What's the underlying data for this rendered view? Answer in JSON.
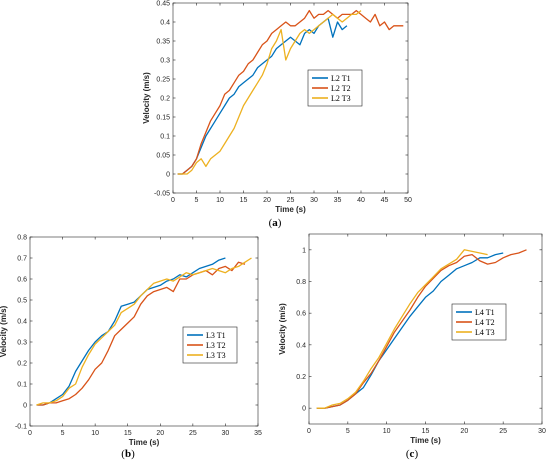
{
  "chart_data": [
    {
      "type": "line",
      "caption": {
        "open": "(",
        "letter": "a",
        "close": ")"
      },
      "xlabel": "Time (s)",
      "ylabel": "Velocity (m/s)",
      "xlim": [
        0,
        50
      ],
      "ylim": [
        -0.05,
        0.45
      ],
      "xticks": [
        "0",
        "5",
        "10",
        "15",
        "20",
        "25",
        "30",
        "35",
        "40",
        "45",
        "50"
      ],
      "yticks": [
        "-0.05",
        "0",
        "0.05",
        "0.1",
        "0.15",
        "0.2",
        "0.25",
        "0.3",
        "0.35",
        "0.4",
        "0.45"
      ],
      "legend": "center-right",
      "series": [
        {
          "name": "L2 T1",
          "color": "#0072BD",
          "x": [
            1,
            2,
            3,
            4,
            5,
            6,
            7,
            8,
            9,
            10,
            11,
            12,
            13,
            14,
            15,
            16,
            17,
            18,
            19,
            20,
            21,
            22,
            23,
            24,
            25,
            26,
            27,
            28,
            29,
            30,
            31,
            32,
            33,
            34,
            35,
            36,
            37
          ],
          "y": [
            0,
            0,
            0.01,
            0.02,
            0.04,
            0.07,
            0.1,
            0.12,
            0.14,
            0.16,
            0.18,
            0.2,
            0.21,
            0.23,
            0.24,
            0.25,
            0.26,
            0.28,
            0.29,
            0.3,
            0.31,
            0.33,
            0.34,
            0.35,
            0.36,
            0.35,
            0.34,
            0.37,
            0.38,
            0.37,
            0.39,
            0.4,
            0.41,
            0.36,
            0.4,
            0.38,
            0.39
          ]
        },
        {
          "name": "L2 T2",
          "color": "#D95319",
          "x": [
            1,
            2,
            3,
            4,
            5,
            6,
            7,
            8,
            9,
            10,
            11,
            12,
            13,
            14,
            15,
            16,
            17,
            18,
            19,
            20,
            21,
            22,
            23,
            24,
            25,
            26,
            27,
            28,
            29,
            30,
            31,
            32,
            33,
            34,
            35,
            36,
            37,
            38,
            39,
            40,
            41,
            42,
            43,
            44,
            45,
            46,
            47,
            48,
            49
          ],
          "y": [
            0,
            0,
            0.01,
            0.02,
            0.04,
            0.08,
            0.11,
            0.14,
            0.16,
            0.18,
            0.21,
            0.22,
            0.24,
            0.26,
            0.27,
            0.29,
            0.3,
            0.32,
            0.34,
            0.35,
            0.37,
            0.38,
            0.39,
            0.4,
            0.39,
            0.39,
            0.4,
            0.41,
            0.43,
            0.41,
            0.42,
            0.42,
            0.43,
            0.42,
            0.41,
            0.42,
            0.42,
            0.42,
            0.43,
            0.42,
            0.41,
            0.4,
            0.42,
            0.39,
            0.4,
            0.38,
            0.39,
            0.39,
            0.39
          ]
        },
        {
          "name": "L2 T3",
          "color": "#EDB120",
          "x": [
            1,
            2,
            3,
            4,
            5,
            6,
            7,
            8,
            9,
            10,
            11,
            12,
            13,
            14,
            15,
            16,
            17,
            18,
            19,
            20,
            21,
            22,
            23,
            24,
            25,
            26,
            27,
            28,
            29,
            30,
            31,
            32,
            33,
            34,
            35,
            36,
            37,
            38,
            39,
            40
          ],
          "y": [
            0,
            0,
            0,
            0.01,
            0.03,
            0.04,
            0.02,
            0.04,
            0.05,
            0.06,
            0.08,
            0.1,
            0.12,
            0.15,
            0.18,
            0.2,
            0.22,
            0.24,
            0.26,
            0.29,
            0.33,
            0.35,
            0.38,
            0.3,
            0.33,
            0.35,
            0.37,
            0.38,
            0.37,
            0.38,
            0.39,
            0.4,
            0.41,
            0.42,
            0.41,
            0.4,
            0.41,
            0.42,
            0.42,
            0.43
          ]
        }
      ]
    },
    {
      "type": "line",
      "caption": {
        "open": "(",
        "letter": "b",
        "close": ")"
      },
      "xlabel": "Time (s)",
      "ylabel": "Velocity (m/s)",
      "xlim": [
        0,
        35
      ],
      "ylim": [
        -0.1,
        0.8
      ],
      "xticks": [
        "0",
        "5",
        "10",
        "15",
        "20",
        "25",
        "30",
        "35"
      ],
      "yticks": [
        "-0.1",
        "0",
        "0.1",
        "0.2",
        "0.3",
        "0.4",
        "0.5",
        "0.6",
        "0.7",
        "0.8"
      ],
      "legend": "bottom-right",
      "series": [
        {
          "name": "L3 T1",
          "color": "#0072BD",
          "x": [
            1,
            2,
            3,
            4,
            5,
            6,
            7,
            8,
            9,
            10,
            11,
            12,
            13,
            14,
            15,
            16,
            17,
            18,
            19,
            20,
            21,
            22,
            23,
            24,
            25,
            26,
            27,
            28,
            29,
            30
          ],
          "y": [
            0,
            0,
            0.01,
            0.03,
            0.05,
            0.09,
            0.16,
            0.21,
            0.26,
            0.3,
            0.33,
            0.35,
            0.4,
            0.47,
            0.48,
            0.49,
            0.52,
            0.55,
            0.56,
            0.57,
            0.59,
            0.6,
            0.62,
            0.61,
            0.63,
            0.65,
            0.66,
            0.67,
            0.69,
            0.7
          ]
        },
        {
          "name": "L3 T2",
          "color": "#D95319",
          "x": [
            1,
            2,
            3,
            4,
            5,
            6,
            7,
            8,
            9,
            10,
            11,
            12,
            13,
            14,
            15,
            16,
            17,
            18,
            19,
            20,
            21,
            22,
            23,
            24,
            25,
            26,
            27,
            28,
            29,
            30,
            31,
            32,
            33
          ],
          "y": [
            0,
            0,
            0.01,
            0.01,
            0.02,
            0.03,
            0.05,
            0.08,
            0.12,
            0.17,
            0.2,
            0.26,
            0.33,
            0.36,
            0.39,
            0.42,
            0.48,
            0.52,
            0.54,
            0.55,
            0.56,
            0.54,
            0.6,
            0.6,
            0.62,
            0.63,
            0.64,
            0.62,
            0.65,
            0.66,
            0.64,
            0.68,
            0.67
          ]
        },
        {
          "name": "L3 T3",
          "color": "#EDB120",
          "x": [
            1,
            2,
            3,
            4,
            5,
            6,
            7,
            8,
            9,
            10,
            11,
            12,
            13,
            14,
            15,
            16,
            17,
            18,
            19,
            20,
            21,
            22,
            23,
            24,
            25,
            26,
            27,
            28,
            29,
            30,
            31,
            32,
            33,
            34
          ],
          "y": [
            0,
            0.01,
            0.01,
            0.02,
            0.04,
            0.08,
            0.1,
            0.18,
            0.24,
            0.29,
            0.32,
            0.35,
            0.38,
            0.44,
            0.46,
            0.48,
            0.52,
            0.55,
            0.58,
            0.59,
            0.6,
            0.59,
            0.61,
            0.63,
            0.62,
            0.63,
            0.64,
            0.65,
            0.64,
            0.63,
            0.65,
            0.66,
            0.68,
            0.7
          ]
        }
      ]
    },
    {
      "type": "line",
      "caption": {
        "open": "(",
        "letter": "c",
        "close": ")"
      },
      "xlabel": "Time (s)",
      "ylabel": "Velocity (m/s)",
      "xlim": [
        0,
        30
      ],
      "ylim": [
        -0.1,
        1.1
      ],
      "xticks": [
        "0",
        "5",
        "10",
        "15",
        "20",
        "25",
        "30"
      ],
      "yticks": [
        "0",
        "0.2",
        "0.4",
        "0.6",
        "0.8",
        "1"
      ],
      "legend": "bottom-right",
      "series": [
        {
          "name": "L4 T1",
          "color": "#0072BD",
          "x": [
            1,
            2,
            3,
            4,
            5,
            6,
            7,
            8,
            9,
            10,
            11,
            12,
            13,
            14,
            15,
            16,
            17,
            18,
            19,
            20,
            21,
            22,
            23,
            24,
            25
          ],
          "y": [
            0,
            0,
            0.01,
            0.02,
            0.05,
            0.09,
            0.13,
            0.21,
            0.3,
            0.37,
            0.44,
            0.51,
            0.58,
            0.64,
            0.7,
            0.74,
            0.8,
            0.84,
            0.88,
            0.9,
            0.92,
            0.95,
            0.95,
            0.97,
            0.98
          ]
        },
        {
          "name": "L4 T2",
          "color": "#D95319",
          "x": [
            1,
            2,
            3,
            4,
            5,
            6,
            7,
            8,
            9,
            10,
            11,
            12,
            13,
            14,
            15,
            16,
            17,
            18,
            19,
            20,
            21,
            22,
            23,
            24,
            25,
            26,
            27,
            28
          ],
          "y": [
            0,
            0,
            0.01,
            0.02,
            0.05,
            0.09,
            0.16,
            0.22,
            0.3,
            0.39,
            0.48,
            0.55,
            0.62,
            0.7,
            0.77,
            0.82,
            0.87,
            0.9,
            0.92,
            0.96,
            0.97,
            0.93,
            0.91,
            0.92,
            0.95,
            0.97,
            0.98,
            1.0
          ]
        },
        {
          "name": "L4 T3",
          "color": "#EDB120",
          "x": [
            1,
            2,
            3,
            4,
            5,
            6,
            7,
            8,
            9,
            10,
            11,
            12,
            13,
            14,
            15,
            16,
            17,
            18,
            19,
            20,
            21,
            22,
            23
          ],
          "y": [
            0,
            0,
            0.02,
            0.03,
            0.06,
            0.1,
            0.17,
            0.25,
            0.32,
            0.41,
            0.5,
            0.58,
            0.66,
            0.73,
            0.78,
            0.83,
            0.88,
            0.91,
            0.94,
            1.0,
            0.99,
            0.98,
            0.97
          ]
        }
      ]
    }
  ]
}
